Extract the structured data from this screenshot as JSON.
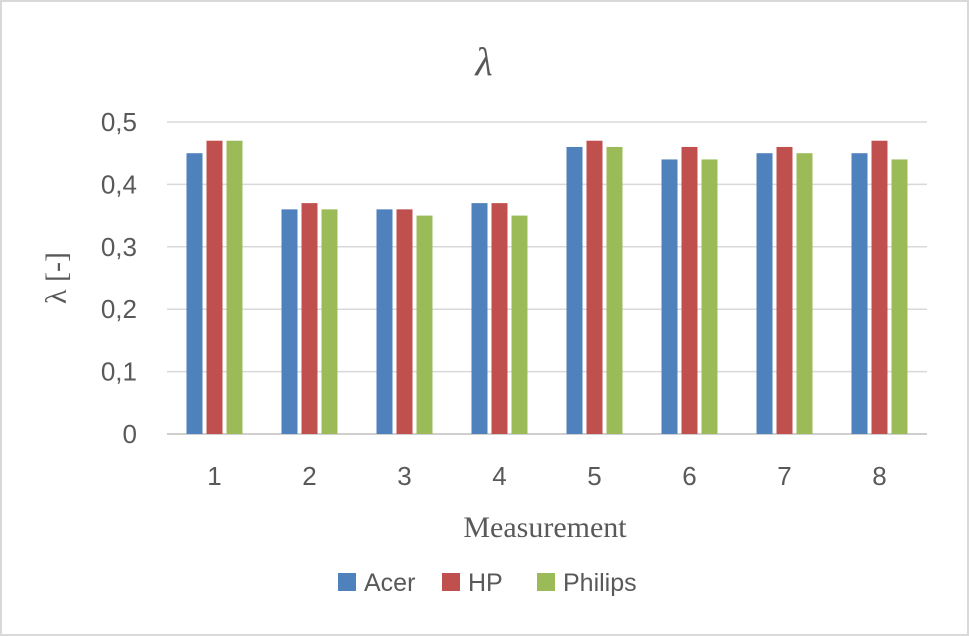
{
  "chart_data": {
    "type": "bar",
    "title": "λ",
    "xlabel": "Measurement",
    "ylabel": "λ [-]",
    "categories": [
      "1",
      "2",
      "3",
      "4",
      "5",
      "6",
      "7",
      "8"
    ],
    "ylim": [
      0,
      0.5
    ],
    "yticks": [
      "0",
      "0,1",
      "0,2",
      "0,3",
      "0,4",
      "0,5"
    ],
    "grid": true,
    "legend_position": "bottom",
    "series": [
      {
        "name": "Acer",
        "color": "#4f81bd",
        "values": [
          0.45,
          0.36,
          0.36,
          0.37,
          0.46,
          0.44,
          0.45,
          0.45
        ]
      },
      {
        "name": "HP",
        "color": "#c0504d",
        "values": [
          0.47,
          0.37,
          0.36,
          0.37,
          0.47,
          0.46,
          0.46,
          0.47
        ]
      },
      {
        "name": "Philips",
        "color": "#9bbb59",
        "values": [
          0.47,
          0.36,
          0.35,
          0.35,
          0.46,
          0.44,
          0.45,
          0.44
        ]
      }
    ]
  }
}
